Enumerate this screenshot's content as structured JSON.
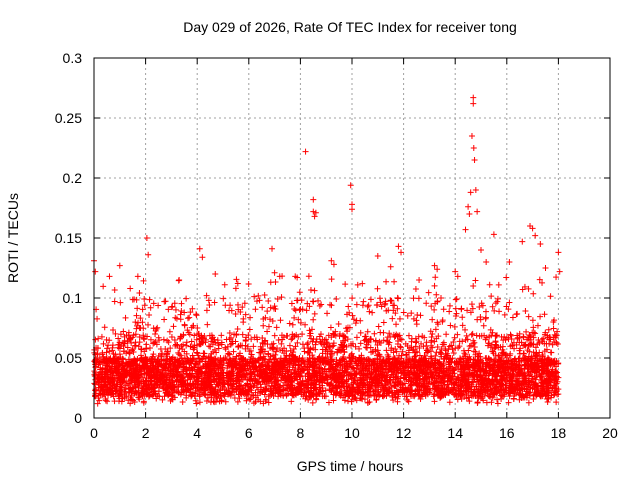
{
  "chart_data": {
    "type": "scatter",
    "title": "Day 029 of 2026, Rate Of TEC Index for receiver tong",
    "xlabel": "GPS time / hours",
    "ylabel": "ROTI / TECUs",
    "xlim": [
      0,
      20
    ],
    "ylim": [
      0,
      0.3
    ],
    "xticks": [
      0,
      2,
      4,
      6,
      8,
      10,
      12,
      14,
      16,
      18,
      20
    ],
    "yticks": [
      0,
      0.05,
      0.1,
      0.15,
      0.2,
      0.25,
      0.3
    ],
    "xtick_labels": [
      "0",
      "2",
      "4",
      "6",
      "8",
      "10",
      "12",
      "14",
      "16",
      "18",
      "20"
    ],
    "ytick_labels": [
      "0",
      "0.05",
      "0.1",
      "0.15",
      "0.2",
      "0.25",
      "0.3"
    ],
    "grid": true,
    "marker": "+",
    "color": "#ff0000",
    "series": [
      {
        "name": "ROTI",
        "note": "dense cloud of points from 0 to 18 h; bulk 0.01-0.07, sparse excursions listed in peaks",
        "x_range": [
          0,
          18
        ],
        "bulk_range": [
          0.01,
          0.07
        ],
        "peaks": [
          {
            "x": 0.0,
            "y": 0.131
          },
          {
            "x": 0.05,
            "y": 0.122
          },
          {
            "x": 0.6,
            "y": 0.118
          },
          {
            "x": 1.0,
            "y": 0.127
          },
          {
            "x": 1.7,
            "y": 0.118
          },
          {
            "x": 2.05,
            "y": 0.15
          },
          {
            "x": 2.1,
            "y": 0.136
          },
          {
            "x": 3.3,
            "y": 0.115
          },
          {
            "x": 4.1,
            "y": 0.141
          },
          {
            "x": 4.2,
            "y": 0.134
          },
          {
            "x": 4.7,
            "y": 0.12
          },
          {
            "x": 5.5,
            "y": 0.108
          },
          {
            "x": 6.9,
            "y": 0.141
          },
          {
            "x": 7.0,
            "y": 0.121
          },
          {
            "x": 7.2,
            "y": 0.118
          },
          {
            "x": 7.8,
            "y": 0.118
          },
          {
            "x": 8.2,
            "y": 0.222
          },
          {
            "x": 8.5,
            "y": 0.182
          },
          {
            "x": 8.5,
            "y": 0.172
          },
          {
            "x": 8.55,
            "y": 0.168
          },
          {
            "x": 8.6,
            "y": 0.171
          },
          {
            "x": 9.2,
            "y": 0.131
          },
          {
            "x": 9.3,
            "y": 0.128
          },
          {
            "x": 9.95,
            "y": 0.194
          },
          {
            "x": 10.0,
            "y": 0.178
          },
          {
            "x": 10.0,
            "y": 0.174
          },
          {
            "x": 10.4,
            "y": 0.112
          },
          {
            "x": 11.0,
            "y": 0.135
          },
          {
            "x": 11.5,
            "y": 0.126
          },
          {
            "x": 11.8,
            "y": 0.143
          },
          {
            "x": 11.9,
            "y": 0.138
          },
          {
            "x": 12.6,
            "y": 0.115
          },
          {
            "x": 13.2,
            "y": 0.127
          },
          {
            "x": 13.3,
            "y": 0.124
          },
          {
            "x": 14.0,
            "y": 0.122
          },
          {
            "x": 14.1,
            "y": 0.118
          },
          {
            "x": 14.4,
            "y": 0.157
          },
          {
            "x": 14.5,
            "y": 0.176
          },
          {
            "x": 14.55,
            "y": 0.17
          },
          {
            "x": 14.6,
            "y": 0.188
          },
          {
            "x": 14.65,
            "y": 0.235
          },
          {
            "x": 14.7,
            "y": 0.267
          },
          {
            "x": 14.7,
            "y": 0.262
          },
          {
            "x": 14.72,
            "y": 0.225
          },
          {
            "x": 14.75,
            "y": 0.215
          },
          {
            "x": 14.8,
            "y": 0.19
          },
          {
            "x": 14.85,
            "y": 0.172
          },
          {
            "x": 15.0,
            "y": 0.14
          },
          {
            "x": 15.2,
            "y": 0.13
          },
          {
            "x": 15.5,
            "y": 0.153
          },
          {
            "x": 16.1,
            "y": 0.13
          },
          {
            "x": 16.6,
            "y": 0.147
          },
          {
            "x": 16.9,
            "y": 0.16
          },
          {
            "x": 17.0,
            "y": 0.158
          },
          {
            "x": 17.1,
            "y": 0.152
          },
          {
            "x": 17.3,
            "y": 0.145
          },
          {
            "x": 17.5,
            "y": 0.125
          },
          {
            "x": 18.0,
            "y": 0.138
          },
          {
            "x": 18.05,
            "y": 0.122
          }
        ]
      }
    ]
  }
}
